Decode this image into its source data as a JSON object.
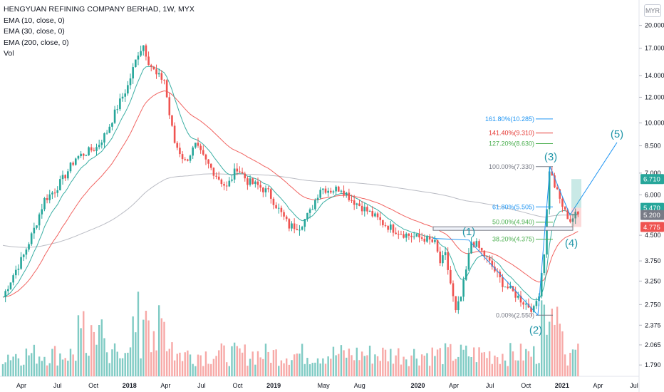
{
  "header": {
    "title": "HENGYUAN REFINING COMPANY BERHAD, 1W, MYX",
    "indicators": [
      "EMA (10, close, 0)",
      "EMA (30, close, 0)",
      "EMA (200, close, 0)",
      "Vol"
    ],
    "currency": "MYR"
  },
  "colors": {
    "up": "#26a69a",
    "down": "#ef5350",
    "ema10": "#26a69a",
    "ema30": "#ef5350",
    "ema200": "#b2b5be",
    "vol_up": "#80cbc4",
    "vol_down": "#f7a9a7",
    "fib_blue": "#2196f3",
    "fib_red": "#e53935",
    "fib_green": "#4caf50",
    "wave": "#2196a8"
  },
  "chart_data": {
    "type": "candlestick",
    "scale": "log",
    "y_ticks": [
      "20.000",
      "17.000",
      "14.000",
      "12.000",
      "10.000",
      "8.500",
      "7.000",
      "6.000",
      "4.500",
      "3.750",
      "3.250",
      "2.750",
      "2.375",
      "2.065",
      "1.790"
    ],
    "x_ticks": [
      "Apr",
      "Jul",
      "Oct",
      "2018",
      "Apr",
      "Jul",
      "Oct",
      "2019",
      "May",
      "Aug",
      "2020",
      "Apr",
      "Jul",
      "Oct",
      "2021",
      "Apr",
      "Jul"
    ],
    "ylim": [
      1.72,
      23.0
    ],
    "price_badges": [
      {
        "value": "6.710",
        "color": "#26a69a"
      },
      {
        "value": "5.470",
        "color": "#26a69a"
      },
      {
        "value": "5.200",
        "color": "#787b86"
      },
      {
        "value": "4.775",
        "color": "#ef5350"
      }
    ],
    "fibonacci": [
      {
        "label": "161.80%(10.285)",
        "price": 10.285,
        "color": "#2196f3"
      },
      {
        "label": "141.40%(9.310)",
        "price": 9.31,
        "color": "#e53935"
      },
      {
        "label": "127.20%(8.630)",
        "price": 8.63,
        "color": "#4caf50"
      },
      {
        "label": "100.00%(7.330)",
        "price": 7.33,
        "color": "#787b86"
      },
      {
        "label": "61.80%(5.505)",
        "price": 5.505,
        "color": "#2196f3"
      },
      {
        "label": "50.00%(4.940)",
        "price": 4.94,
        "color": "#4caf50"
      },
      {
        "label": "38.20%(4.375)",
        "price": 4.375,
        "color": "#4caf50"
      },
      {
        "label": "0.00%(2.550)",
        "price": 2.55,
        "color": "#787b86"
      }
    ],
    "waves": [
      "(1)",
      "(2)",
      "(3)",
      "(4)",
      "(5)"
    ],
    "close_path": [
      {
        "t": 0.0,
        "c": 2.9
      },
      {
        "t": 4,
        "c": 3.4
      },
      {
        "t": 8,
        "c": 3.9
      },
      {
        "t": 12,
        "c": 4.7
      },
      {
        "t": 16,
        "c": 5.8
      },
      {
        "t": 20,
        "c": 6.2
      },
      {
        "t": 24,
        "c": 6.9
      },
      {
        "t": 28,
        "c": 7.8
      },
      {
        "t": 32,
        "c": 8.1
      },
      {
        "t": 36,
        "c": 8.4
      },
      {
        "t": 40,
        "c": 9.4
      },
      {
        "t": 44,
        "c": 11.2
      },
      {
        "t": 48,
        "c": 13.0
      },
      {
        "t": 52,
        "c": 16.5
      },
      {
        "t": 54,
        "c": 17.4
      },
      {
        "t": 56,
        "c": 15.5
      },
      {
        "t": 59,
        "c": 14.0
      },
      {
        "t": 62,
        "c": 13.6
      },
      {
        "t": 64,
        "c": 10.6
      },
      {
        "t": 66,
        "c": 8.7
      },
      {
        "t": 70,
        "c": 7.6
      },
      {
        "t": 74,
        "c": 8.5
      },
      {
        "t": 78,
        "c": 7.6
      },
      {
        "t": 82,
        "c": 6.9
      },
      {
        "t": 86,
        "c": 6.3
      },
      {
        "t": 90,
        "c": 7.3
      },
      {
        "t": 94,
        "c": 6.6
      },
      {
        "t": 98,
        "c": 6.4
      },
      {
        "t": 102,
        "c": 6.1
      },
      {
        "t": 106,
        "c": 5.4
      },
      {
        "t": 110,
        "c": 4.8
      },
      {
        "t": 114,
        "c": 4.8
      },
      {
        "t": 118,
        "c": 5.3
      },
      {
        "t": 122,
        "c": 6.3
      },
      {
        "t": 126,
        "c": 6.2
      },
      {
        "t": 130,
        "c": 6.3
      },
      {
        "t": 134,
        "c": 5.8
      },
      {
        "t": 138,
        "c": 5.5
      },
      {
        "t": 142,
        "c": 5.2
      },
      {
        "t": 146,
        "c": 4.9
      },
      {
        "t": 150,
        "c": 4.7
      },
      {
        "t": 154,
        "c": 4.55
      },
      {
        "t": 158,
        "c": 4.45
      },
      {
        "t": 162,
        "c": 4.4
      },
      {
        "t": 166,
        "c": 4.25
      },
      {
        "t": 168,
        "c": 3.7
      },
      {
        "t": 170,
        "c": 3.9
      },
      {
        "t": 172,
        "c": 3.2
      },
      {
        "t": 174,
        "c": 2.6
      },
      {
        "t": 176,
        "c": 2.9
      },
      {
        "t": 178,
        "c": 3.5
      },
      {
        "t": 180,
        "c": 4.3
      },
      {
        "t": 182,
        "c": 4.2
      },
      {
        "t": 184,
        "c": 4.0
      },
      {
        "t": 188,
        "c": 3.6
      },
      {
        "t": 192,
        "c": 3.2
      },
      {
        "t": 196,
        "c": 3.0
      },
      {
        "t": 200,
        "c": 2.8
      },
      {
        "t": 204,
        "c": 2.65
      },
      {
        "t": 206,
        "c": 3.0
      },
      {
        "t": 208,
        "c": 4.0
      },
      {
        "t": 210,
        "c": 7.2
      },
      {
        "t": 212,
        "c": 6.4
      },
      {
        "t": 214,
        "c": 5.8
      },
      {
        "t": 216,
        "c": 5.3
      },
      {
        "t": 218,
        "c": 5.0
      },
      {
        "t": 220,
        "c": 5.2
      }
    ]
  }
}
